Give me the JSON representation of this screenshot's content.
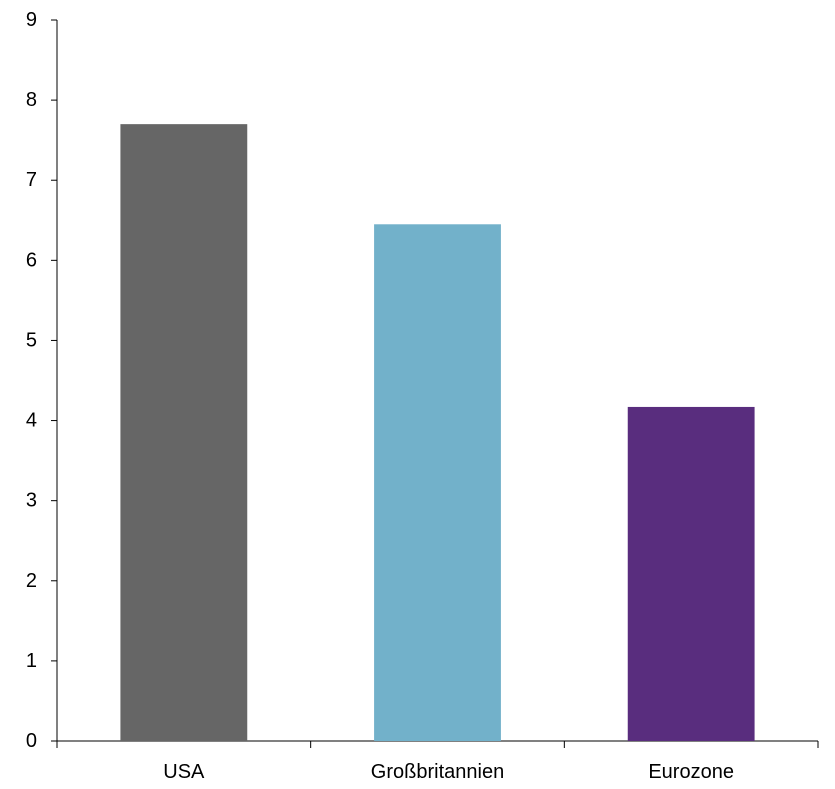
{
  "chart_data": {
    "type": "bar",
    "title": "",
    "xlabel": "",
    "ylabel": "",
    "categories": [
      "USA",
      "Großbritannien",
      "Eurozone"
    ],
    "values": [
      7.7,
      6.45,
      4.17
    ],
    "colors": [
      "#666666",
      "#72B1CA",
      "#592D7E"
    ],
    "ylim": [
      0,
      9
    ],
    "yticks": [
      0,
      1,
      2,
      3,
      4,
      5,
      6,
      7,
      8,
      9
    ],
    "grid": false,
    "legend": "none"
  }
}
